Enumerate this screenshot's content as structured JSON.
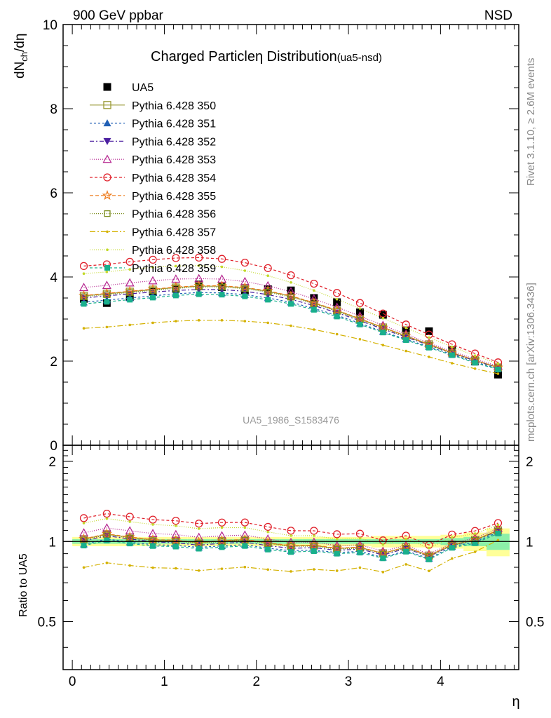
{
  "header": {
    "left": "900 GeV ppbar",
    "right": "NSD"
  },
  "side_labels": {
    "rivet": "Rivet 3.1.10, ≥ 2.6M events",
    "mcplots": "mcplots.cern.ch [arXiv:1306.3436]"
  },
  "chart_data": [
    {
      "panel": "main",
      "type": "line",
      "title_main": "Charged Particle",
      "title_eta": "η",
      "title_rest": " Distribution",
      "title_sub": "(ua5-nsd)",
      "ylabel": "dN",
      "ylabel_sub": "ch",
      "ylabel_end": "/dη",
      "watermark": "UA5_1986_S1583476",
      "xlim": [
        -0.1,
        4.85
      ],
      "ylim": [
        0,
        10
      ],
      "y_ticks": [
        "0",
        "2",
        "4",
        "6",
        "8",
        "10"
      ],
      "x": [
        0.125,
        0.375,
        0.625,
        0.875,
        1.125,
        1.375,
        1.625,
        1.875,
        2.125,
        2.375,
        2.625,
        2.875,
        3.125,
        3.375,
        3.625,
        3.875,
        4.125,
        4.375,
        4.625
      ],
      "series": [
        {
          "name": "UA5",
          "color": "#000000",
          "marker": "filled-square",
          "dash": "none",
          "values": [
            3.48,
            3.38,
            3.52,
            3.65,
            3.72,
            3.82,
            3.76,
            3.68,
            3.71,
            3.68,
            3.5,
            3.4,
            3.16,
            3.1,
            2.73,
            2.71,
            2.26,
            1.99,
            1.68
          ]
        },
        {
          "name": "Pythia 6.428 350",
          "color": "#999933",
          "marker": "open-square",
          "dash": "solid",
          "values": [
            3.55,
            3.6,
            3.65,
            3.7,
            3.75,
            3.78,
            3.78,
            3.74,
            3.66,
            3.54,
            3.38,
            3.2,
            3.0,
            2.8,
            2.6,
            2.4,
            2.2,
            2.02,
            1.85
          ]
        },
        {
          "name": "Pythia 6.428 351",
          "color": "#1f5fb5",
          "marker": "filled-triangle-up",
          "dash": "3,3",
          "values": [
            3.4,
            3.45,
            3.5,
            3.55,
            3.6,
            3.63,
            3.62,
            3.58,
            3.5,
            3.4,
            3.25,
            3.09,
            2.9,
            2.7,
            2.52,
            2.34,
            2.16,
            1.98,
            1.82
          ]
        },
        {
          "name": "Pythia 6.428 352",
          "color": "#4b1fa0",
          "marker": "filled-triangle-down",
          "dash": "6,3,2,3",
          "values": [
            3.5,
            3.55,
            3.6,
            3.64,
            3.68,
            3.7,
            3.7,
            3.66,
            3.58,
            3.47,
            3.32,
            3.15,
            2.96,
            2.76,
            2.57,
            2.38,
            2.19,
            2.01,
            1.84
          ]
        },
        {
          "name": "Pythia 6.428 353",
          "color": "#b5248f",
          "marker": "open-triangle-up",
          "dash": "1,2",
          "values": [
            3.75,
            3.8,
            3.86,
            3.91,
            3.95,
            3.96,
            3.95,
            3.89,
            3.79,
            3.65,
            3.48,
            3.28,
            3.07,
            2.85,
            2.64,
            2.43,
            2.23,
            2.05,
            1.88
          ]
        },
        {
          "name": "Pythia 6.428 354",
          "color": "#e0202a",
          "marker": "open-circle",
          "dash": "4,3",
          "values": [
            4.26,
            4.3,
            4.36,
            4.41,
            4.45,
            4.46,
            4.43,
            4.34,
            4.21,
            4.04,
            3.84,
            3.62,
            3.38,
            3.13,
            2.87,
            2.63,
            2.4,
            2.18,
            1.97
          ]
        },
        {
          "name": "Pythia 6.428 355",
          "color": "#ee7a1a",
          "marker": "open-star",
          "dash": "5,3",
          "values": [
            3.56,
            3.61,
            3.66,
            3.71,
            3.76,
            3.79,
            3.79,
            3.75,
            3.67,
            3.55,
            3.39,
            3.21,
            3.01,
            2.8,
            2.6,
            2.4,
            2.2,
            2.02,
            1.85
          ]
        },
        {
          "name": "Pythia 6.428 356",
          "color": "#7a8c1a",
          "marker": "open-square-small",
          "dash": "1,2",
          "values": [
            3.53,
            3.58,
            3.63,
            3.68,
            3.73,
            3.76,
            3.76,
            3.72,
            3.64,
            3.52,
            3.36,
            3.18,
            2.98,
            2.78,
            2.58,
            2.38,
            2.18,
            2.01,
            1.84
          ]
        },
        {
          "name": "Pythia 6.428 357",
          "color": "#d4b100",
          "marker": "small-dot",
          "dash": "8,3,2,3",
          "values": [
            2.78,
            2.81,
            2.86,
            2.91,
            2.95,
            2.97,
            2.97,
            2.95,
            2.91,
            2.84,
            2.75,
            2.64,
            2.52,
            2.38,
            2.24,
            2.1,
            1.95,
            1.82,
            1.7
          ]
        },
        {
          "name": "Pythia 6.428 358",
          "color": "#c2d92a",
          "marker": "small-dot",
          "dash": "1,2",
          "values": [
            4.08,
            4.12,
            4.18,
            4.23,
            4.26,
            4.27,
            4.24,
            4.15,
            4.03,
            3.87,
            3.68,
            3.47,
            3.25,
            3.02,
            2.79,
            2.56,
            2.34,
            2.13,
            1.94
          ]
        },
        {
          "name": "Pythia 6.428 359",
          "color": "#19b08c",
          "marker": "filled-square-small",
          "dash": "4,3",
          "values": [
            3.36,
            3.41,
            3.46,
            3.51,
            3.56,
            3.59,
            3.58,
            3.54,
            3.46,
            3.36,
            3.22,
            3.06,
            2.87,
            2.68,
            2.5,
            2.32,
            2.14,
            1.96,
            1.8
          ]
        }
      ]
    },
    {
      "panel": "ratio",
      "type": "line",
      "ylabel": "Ratio to UA5",
      "xlabel": "η",
      "xlim": [
        -0.1,
        4.85
      ],
      "ylim": [
        0.33,
        2.3
      ],
      "y_ticks": [
        "0.5",
        "1",
        "2"
      ],
      "x_ticks": [
        "0",
        "1",
        "2",
        "3",
        "4"
      ],
      "reference_line": 1,
      "uncertainty_band_edges": [
        0.0,
        0.25,
        0.5,
        0.75,
        1.0,
        1.25,
        1.5,
        1.75,
        2.0,
        2.25,
        2.5,
        2.75,
        3.0,
        3.25,
        3.5,
        3.75,
        4.0,
        4.25,
        4.5,
        4.75
      ],
      "uncertainty_stat": [
        0.02,
        0.02,
        0.02,
        0.02,
        0.02,
        0.02,
        0.02,
        0.02,
        0.02,
        0.02,
        0.02,
        0.02,
        0.02,
        0.02,
        0.02,
        0.02,
        0.03,
        0.04,
        0.07
      ],
      "uncertainty_total": [
        0.04,
        0.04,
        0.04,
        0.04,
        0.04,
        0.04,
        0.04,
        0.04,
        0.04,
        0.04,
        0.04,
        0.04,
        0.04,
        0.05,
        0.05,
        0.05,
        0.06,
        0.08,
        0.12
      ],
      "band_colors": {
        "total": "#ffff99",
        "stat": "#8cf0a8"
      }
    }
  ]
}
